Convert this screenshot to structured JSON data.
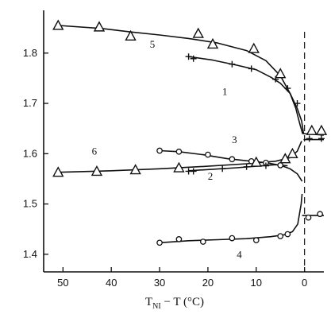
{
  "chart_data": {
    "type": "scatter",
    "xlabel": {
      "main": "T",
      "sub": "NI",
      "rest": " − T (°C)"
    },
    "xlim": [
      -4,
      54
    ],
    "ylim": [
      1.365,
      1.885
    ],
    "x_reversed": true,
    "xticks": [
      "50",
      "40",
      "30",
      "20",
      "10",
      "0"
    ],
    "yticks": [
      "1.4",
      "1.5",
      "1.6",
      "1.7",
      "1.8"
    ],
    "dashed_line_x": 0,
    "series": [
      {
        "label": "5",
        "marker": "triangle",
        "points": [
          [
            51,
            1.855
          ],
          [
            42.5,
            1.852
          ],
          [
            36,
            1.834
          ],
          [
            22,
            1.839
          ],
          [
            19,
            1.818
          ],
          [
            10.5,
            1.809
          ],
          [
            5,
            1.759
          ],
          [
            -1.5,
            1.646
          ],
          [
            -3.5,
            1.646
          ]
        ],
        "curve": [
          [
            51,
            1.855
          ],
          [
            42,
            1.849
          ],
          [
            36,
            1.842
          ],
          [
            30,
            1.836
          ],
          [
            24,
            1.829
          ],
          [
            18,
            1.82
          ],
          [
            12,
            1.805
          ],
          [
            8,
            1.785
          ],
          [
            5,
            1.755
          ],
          [
            3,
            1.72
          ],
          [
            1.8,
            1.69
          ],
          [
            1,
            1.66
          ],
          [
            0.4,
            1.64
          ],
          [
            -4,
            1.637
          ]
        ]
      },
      {
        "label": "1",
        "marker": "plus",
        "points": [
          [
            24,
            1.793
          ],
          [
            23,
            1.789
          ],
          [
            15,
            1.778
          ],
          [
            11,
            1.769
          ],
          [
            6,
            1.748
          ],
          [
            3.5,
            1.73
          ],
          [
            1.5,
            1.7
          ],
          [
            -1,
            1.63
          ],
          [
            -3.5,
            1.63
          ]
        ],
        "curve": [
          [
            24,
            1.793
          ],
          [
            19,
            1.786
          ],
          [
            14,
            1.776
          ],
          [
            10,
            1.767
          ],
          [
            7,
            1.752
          ],
          [
            5,
            1.74
          ],
          [
            3,
            1.72
          ],
          [
            1.5,
            1.69
          ],
          [
            0.6,
            1.665
          ],
          [
            0.2,
            1.64
          ]
        ],
        "curve_tail": [
          [
            0.2,
            1.628
          ],
          [
            -4,
            1.628
          ]
        ]
      },
      {
        "label": "3",
        "marker": "circle",
        "points": [
          [
            30,
            1.606
          ],
          [
            26,
            1.604
          ],
          [
            20,
            1.598
          ],
          [
            15,
            1.589
          ],
          [
            11,
            1.585
          ],
          [
            8,
            1.582
          ],
          [
            5,
            1.577
          ]
        ],
        "curve": [
          [
            30,
            1.606
          ],
          [
            26,
            1.604
          ],
          [
            21,
            1.598
          ],
          [
            16,
            1.59
          ],
          [
            12,
            1.586
          ],
          [
            8,
            1.582
          ],
          [
            5,
            1.577
          ],
          [
            3,
            1.57
          ],
          [
            1.5,
            1.56
          ],
          [
            0.5,
            1.545
          ]
        ]
      },
      {
        "label": "6",
        "marker": "triangle",
        "points": [
          [
            51,
            1.563
          ],
          [
            43,
            1.565
          ],
          [
            35,
            1.568
          ],
          [
            26,
            1.572
          ],
          [
            10,
            1.583
          ],
          [
            4,
            1.59
          ],
          [
            2.5,
            1.6
          ]
        ],
        "curve": [
          [
            51,
            1.563
          ],
          [
            40,
            1.566
          ],
          [
            30,
            1.57
          ],
          [
            20,
            1.575
          ],
          [
            12,
            1.58
          ],
          [
            6,
            1.585
          ],
          [
            3,
            1.592
          ],
          [
            1.5,
            1.605
          ],
          [
            0.6,
            1.625
          ]
        ]
      },
      {
        "label": "2",
        "marker": "plus",
        "points": [
          [
            24,
            1.565
          ],
          [
            23,
            1.565
          ],
          [
            17,
            1.57
          ],
          [
            12,
            1.574
          ],
          [
            8,
            1.576
          ]
        ],
        "curve": [
          [
            24,
            1.566
          ],
          [
            19,
            1.569
          ],
          [
            14,
            1.572
          ],
          [
            10,
            1.575
          ],
          [
            6,
            1.578
          ],
          [
            3.5,
            1.576
          ]
        ]
      },
      {
        "label": "4",
        "marker": "circle",
        "points": [
          [
            30,
            1.423
          ],
          [
            26,
            1.43
          ],
          [
            21,
            1.425
          ],
          [
            15,
            1.432
          ],
          [
            10,
            1.428
          ],
          [
            5,
            1.436
          ],
          [
            3.5,
            1.44
          ],
          [
            -0.8,
            1.473
          ],
          [
            -3.2,
            1.48
          ]
        ],
        "curve": [
          [
            30,
            1.423
          ],
          [
            24,
            1.427
          ],
          [
            18,
            1.429
          ],
          [
            12,
            1.431
          ],
          [
            7,
            1.435
          ],
          [
            4,
            1.439
          ],
          [
            2.5,
            1.445
          ],
          [
            1.4,
            1.46
          ],
          [
            0.7,
            1.5
          ],
          [
            0.5,
            1.52
          ]
        ],
        "curve_tail": [
          [
            0.5,
            1.477
          ],
          [
            -4,
            1.477
          ]
        ]
      }
    ],
    "labels": [
      {
        "text": "5",
        "x": 31.5,
        "y": 1.811
      },
      {
        "text": "1",
        "x": 16.5,
        "y": 1.717
      },
      {
        "text": "3",
        "x": 14.5,
        "y": 1.621
      },
      {
        "text": "6",
        "x": 43.5,
        "y": 1.598
      },
      {
        "text": "2",
        "x": 19.5,
        "y": 1.548
      },
      {
        "text": "4",
        "x": 13.5,
        "y": 1.393
      }
    ]
  }
}
